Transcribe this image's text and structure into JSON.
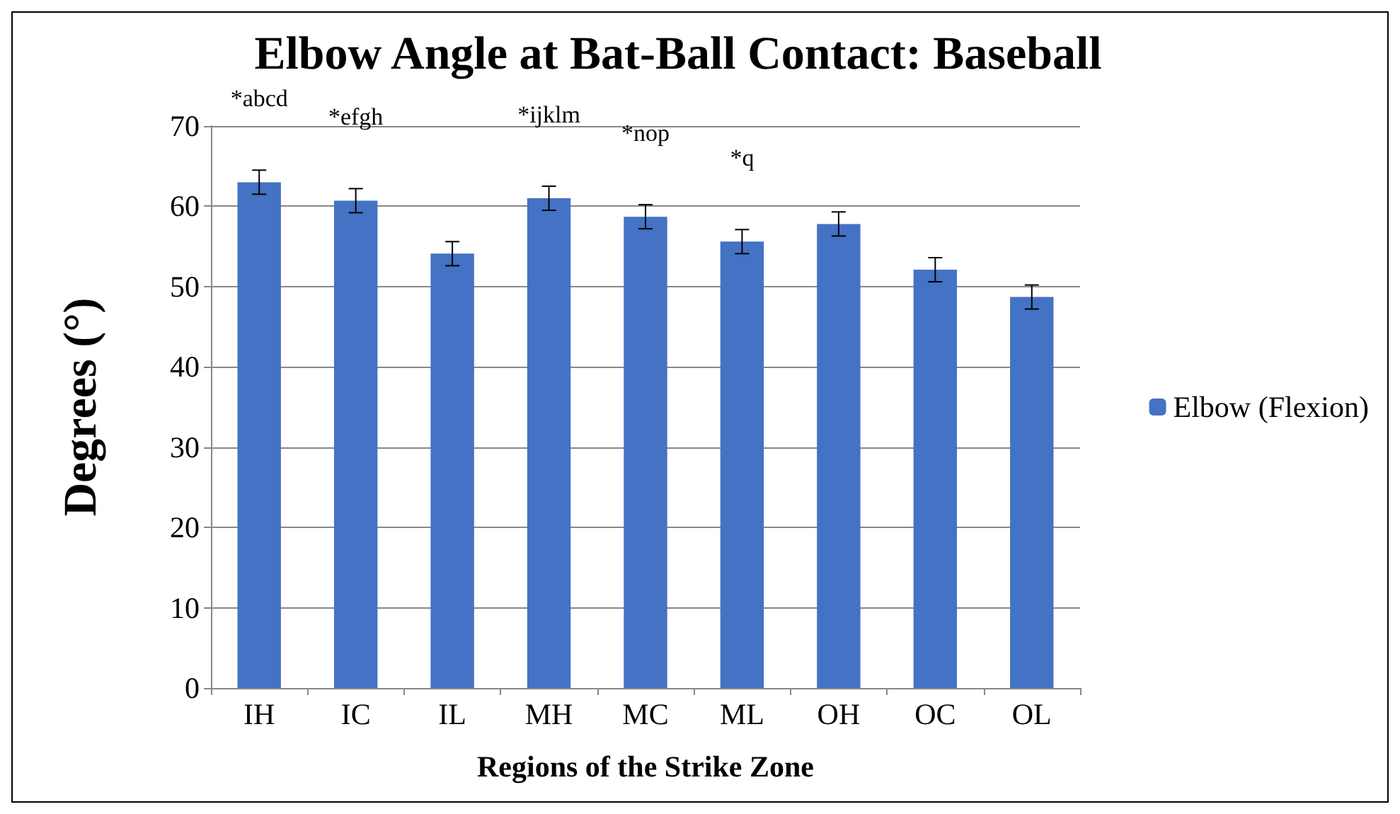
{
  "chart_data": {
    "type": "bar",
    "title": "Elbow Angle at Bat-Ball Contact: Baseball",
    "xlabel": "Regions of the Strike Zone",
    "ylabel": "Degrees (°)",
    "categories": [
      "IH",
      "IC",
      "IL",
      "MH",
      "MC",
      "ML",
      "OH",
      "OC",
      "OL"
    ],
    "series": [
      {
        "name": "Elbow (Flexion)",
        "color": "#4472c4",
        "values": [
          63,
          60.7,
          54.1,
          61,
          58.7,
          55.6,
          57.8,
          52.1,
          48.7
        ],
        "errors": [
          1.5,
          1.5,
          1.5,
          1.5,
          1.5,
          1.5,
          1.5,
          1.5,
          1.5
        ]
      }
    ],
    "ylim": [
      0,
      70
    ],
    "yticks": [
      0,
      10,
      20,
      30,
      40,
      50,
      60,
      70
    ],
    "grid": "y",
    "legend": "right",
    "annotations": [
      {
        "text": "*abcd",
        "x": "IH",
        "y": 63
      },
      {
        "text": "*efgh",
        "x": "IC",
        "y": 60.7
      },
      {
        "text": "*ijklm",
        "x": "MH",
        "y": 61
      },
      {
        "text": "*nop",
        "x": "MC",
        "y": 58.7
      },
      {
        "text": "*q",
        "x": "ML",
        "y": 55.6
      }
    ]
  }
}
